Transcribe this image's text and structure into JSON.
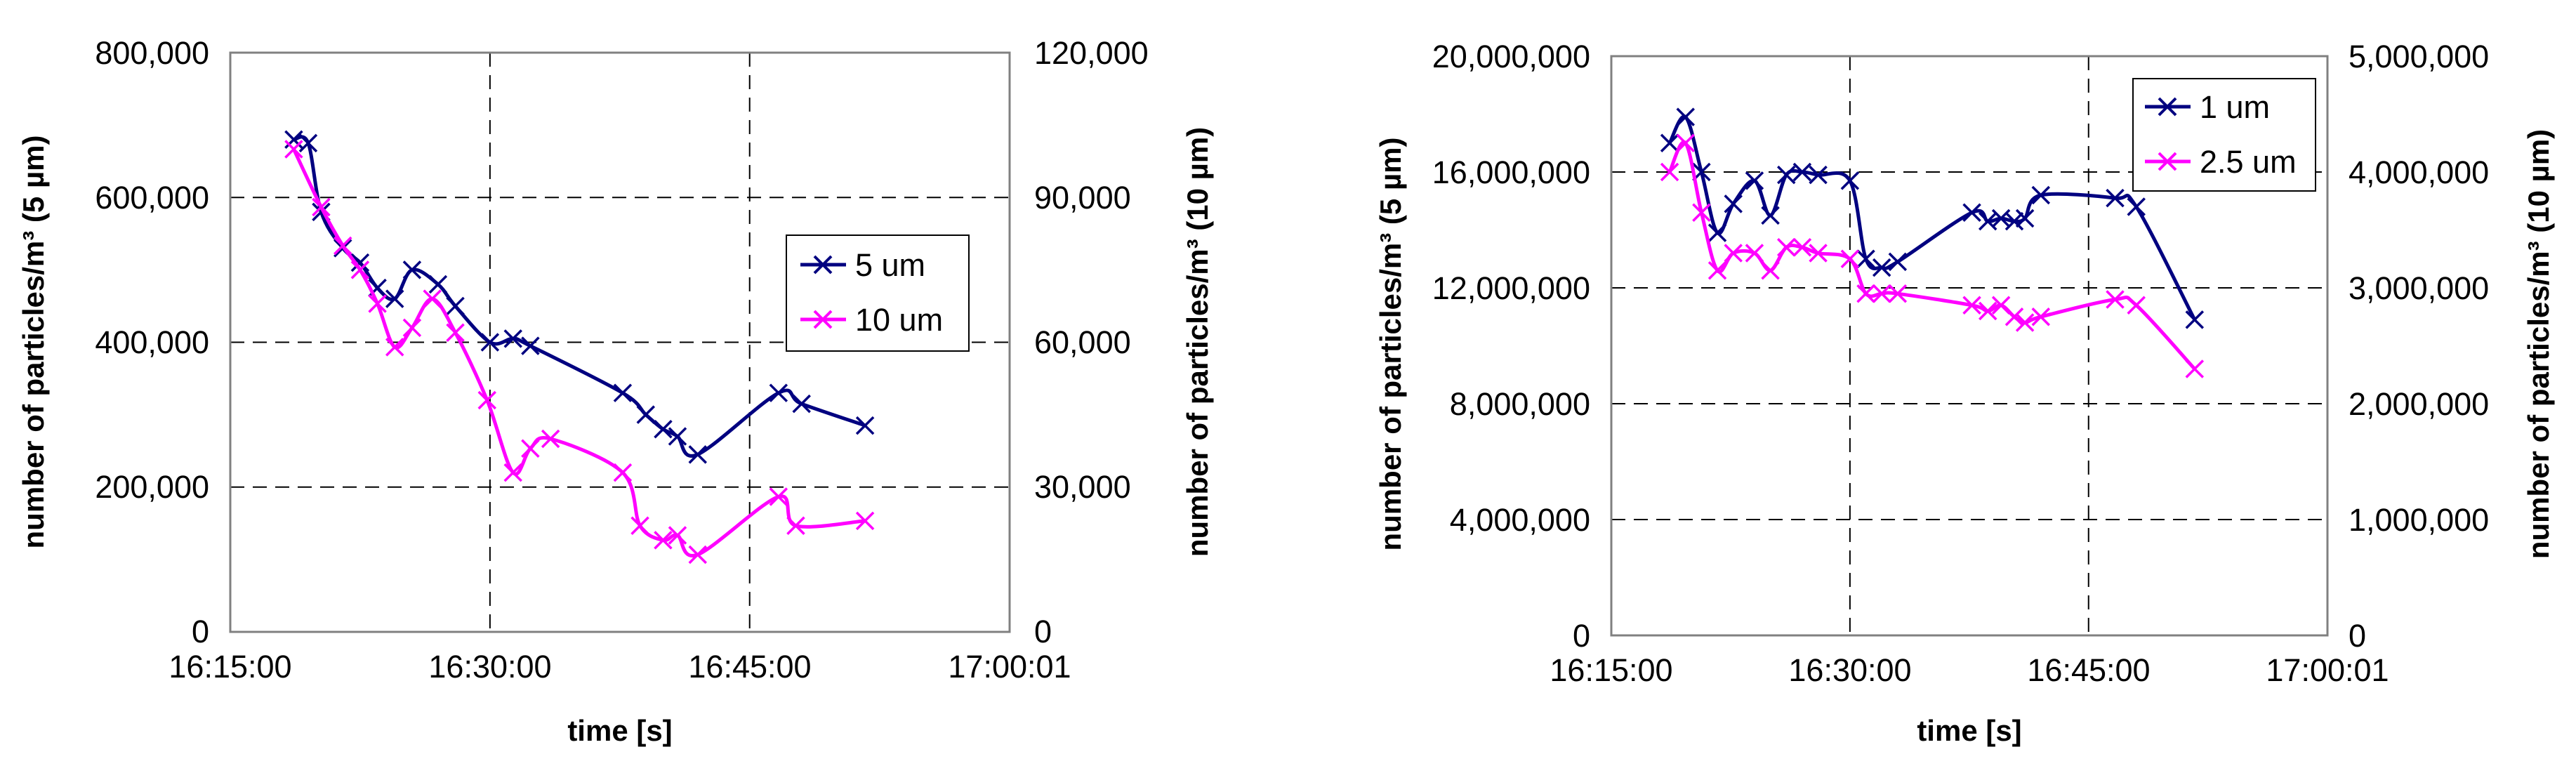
{
  "colors": {
    "navy": "#000080",
    "magenta": "#FF00FF",
    "grid": "#000000",
    "frame": "#808080"
  },
  "chart_data": [
    {
      "type": "line",
      "xlabel": "time [s]",
      "ylabel": "number of particles/m³ (5 µm)",
      "y2label": "number of particles/m³ (10 µm)",
      "x_ticks": [
        "16:15:00",
        "16:30:00",
        "16:45:00",
        "17:00:01"
      ],
      "xlim": [
        "16:15:00",
        "17:00:01"
      ],
      "ylim": [
        0,
        800000
      ],
      "y2lim": [
        0,
        120000
      ],
      "y_ticks": [
        "0",
        "200,000",
        "400,000",
        "600,000",
        "800,000"
      ],
      "y2_ticks": [
        "0",
        "30,000",
        "60,000",
        "90,000",
        "120,000"
      ],
      "grid": "dashed",
      "legend_position": "right",
      "series": [
        {
          "name": "5 um",
          "axis": "left",
          "color": "#000080",
          "x": [
            "16:18:40",
            "16:19:30",
            "16:20:15",
            "16:21:30",
            "16:22:30",
            "16:23:30",
            "16:24:30",
            "16:25:30",
            "16:27:00",
            "16:28:00",
            "16:30:00",
            "16:31:20",
            "16:32:20",
            "16:37:40",
            "16:39:00",
            "16:40:00",
            "16:40:50",
            "16:42:00",
            "16:46:40",
            "16:48:00",
            "16:51:40"
          ],
          "values": [
            680000,
            675000,
            580000,
            530000,
            510000,
            475000,
            460000,
            500000,
            480000,
            450000,
            400000,
            405000,
            395000,
            330000,
            300000,
            280000,
            270000,
            245000,
            330000,
            315000,
            285000
          ]
        },
        {
          "name": "10 um",
          "axis": "right",
          "color": "#FF00FF",
          "x": [
            "16:18:40",
            "16:20:15",
            "16:21:30",
            "16:22:30",
            "16:23:30",
            "16:24:30",
            "16:25:30",
            "16:26:40",
            "16:28:00",
            "16:29:50",
            "16:31:20",
            "16:32:20",
            "16:33:30",
            "16:37:40",
            "16:38:40",
            "16:40:00",
            "16:40:50",
            "16:42:00",
            "16:46:40",
            "16:47:40",
            "16:51:40"
          ],
          "values": [
            100000,
            88000,
            80000,
            75000,
            68000,
            59000,
            63000,
            69000,
            62000,
            48000,
            33000,
            38000,
            40000,
            33000,
            22000,
            19000,
            20000,
            16000,
            28000,
            22000,
            23000
          ]
        }
      ]
    },
    {
      "type": "line",
      "xlabel": "time [s]",
      "ylabel": "number of particles/m³ (5 µm)",
      "y2label": "number of particles/m³ (10 µm)",
      "x_ticks": [
        "16:15:00",
        "16:30:00",
        "16:45:00",
        "17:00:01"
      ],
      "xlim": [
        "16:15:00",
        "17:00:01"
      ],
      "ylim": [
        0,
        20000000
      ],
      "y2lim": [
        0,
        5000000
      ],
      "y_ticks": [
        "0",
        "4,000,000",
        "8,000,000",
        "12,000,000",
        "16,000,000",
        "20,000,000"
      ],
      "y2_ticks": [
        "0",
        "1,000,000",
        "2,000,000",
        "3,000,000",
        "4,000,000",
        "5,000,000"
      ],
      "grid": "dashed",
      "legend_position": "top-right",
      "series": [
        {
          "name": "1 um",
          "axis": "left",
          "color": "#000080",
          "x": [
            "16:18:40",
            "16:19:40",
            "16:20:40",
            "16:21:40",
            "16:22:40",
            "16:24:00",
            "16:25:00",
            "16:26:00",
            "16:27:00",
            "16:28:00",
            "16:30:00",
            "16:31:00",
            "16:32:00",
            "16:33:00",
            "16:37:40",
            "16:38:40",
            "16:39:30",
            "16:40:20",
            "16:41:00",
            "16:42:00",
            "16:46:40",
            "16:48:00",
            "16:51:40"
          ],
          "values": [
            17000000,
            17900000,
            16000000,
            13900000,
            14900000,
            15700000,
            14500000,
            15900000,
            16000000,
            15900000,
            15700000,
            13000000,
            12700000,
            12900000,
            14600000,
            14300000,
            14400000,
            14300000,
            14400000,
            15200000,
            15100000,
            14800000,
            10900000
          ]
        },
        {
          "name": "2.5 um",
          "axis": "right",
          "color": "#FF00FF",
          "x": [
            "16:18:40",
            "16:19:40",
            "16:20:40",
            "16:21:40",
            "16:22:40",
            "16:24:00",
            "16:25:00",
            "16:26:00",
            "16:27:00",
            "16:28:00",
            "16:30:00",
            "16:31:00",
            "16:32:00",
            "16:33:00",
            "16:37:40",
            "16:38:40",
            "16:39:30",
            "16:40:20",
            "16:41:00",
            "16:42:00",
            "16:46:40",
            "16:48:00",
            "16:51:40"
          ],
          "values": [
            4000000,
            4250000,
            3650000,
            3150000,
            3300000,
            3300000,
            3150000,
            3350000,
            3350000,
            3300000,
            3250000,
            2950000,
            2950000,
            2950000,
            2850000,
            2800000,
            2850000,
            2750000,
            2700000,
            2750000,
            2900000,
            2850000,
            2300000
          ]
        }
      ]
    }
  ]
}
